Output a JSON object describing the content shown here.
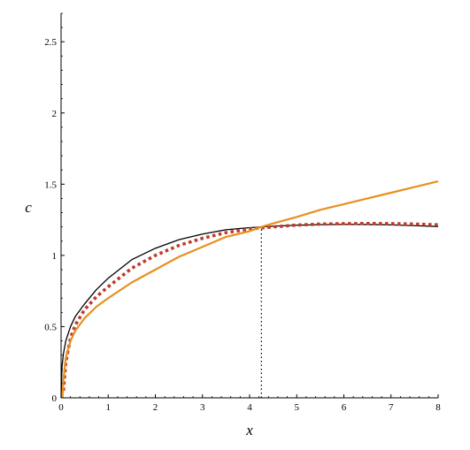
{
  "chart_data": {
    "type": "line",
    "title": "",
    "xlabel": "x",
    "ylabel": "c",
    "xlim": [
      0,
      8
    ],
    "ylim": [
      0,
      2.7
    ],
    "grid": false,
    "legend": "none",
    "x_ticks": [
      "0",
      "1",
      "2",
      "3",
      "4",
      "5",
      "6",
      "7",
      "8"
    ],
    "y_ticks": [
      "0",
      "0.5",
      "1",
      "1.5",
      "2",
      "2.5"
    ],
    "reference_line": {
      "style": "dotted",
      "x": 4.25,
      "y_from": 0,
      "y_to": 1.2,
      "color": "#000000"
    },
    "series": [
      {
        "color": "#000000",
        "style": "solid",
        "x": [
          0,
          0.02,
          0.05,
          0.1,
          0.2,
          0.3,
          0.5,
          0.75,
          1,
          1.5,
          2,
          2.5,
          3,
          3.5,
          4,
          4.5,
          5,
          5.5,
          6,
          6.5,
          7,
          7.5,
          8
        ],
        "y": [
          0,
          0.22,
          0.31,
          0.4,
          0.5,
          0.57,
          0.66,
          0.76,
          0.84,
          0.97,
          1.05,
          1.11,
          1.15,
          1.18,
          1.195,
          1.205,
          1.212,
          1.216,
          1.218,
          1.217,
          1.214,
          1.209,
          1.203
        ]
      },
      {
        "color": "#c0392b",
        "style": "dotted",
        "x": [
          0.05,
          0.1,
          0.2,
          0.3,
          0.5,
          0.75,
          1,
          1.5,
          2,
          2.5,
          3,
          3.5,
          4,
          4.5,
          5,
          5.5,
          6,
          6.5,
          7,
          7.5,
          8
        ],
        "y": [
          0.05,
          0.25,
          0.42,
          0.51,
          0.62,
          0.71,
          0.78,
          0.91,
          1.0,
          1.07,
          1.12,
          1.16,
          1.185,
          1.2,
          1.213,
          1.22,
          1.223,
          1.224,
          1.223,
          1.22,
          1.215
        ]
      },
      {
        "color": "#e8901e",
        "style": "solid",
        "x": [
          0.03,
          0.05,
          0.1,
          0.2,
          0.3,
          0.5,
          0.75,
          1,
          1.5,
          2,
          2.5,
          3,
          3.5,
          4,
          4.25,
          4.5,
          5,
          5.5,
          6,
          6.5,
          7,
          7.5,
          8
        ],
        "y": [
          0,
          0.12,
          0.28,
          0.4,
          0.47,
          0.56,
          0.64,
          0.7,
          0.81,
          0.9,
          0.99,
          1.06,
          1.13,
          1.17,
          1.2,
          1.225,
          1.27,
          1.32,
          1.36,
          1.4,
          1.44,
          1.48,
          1.52
        ]
      }
    ]
  }
}
